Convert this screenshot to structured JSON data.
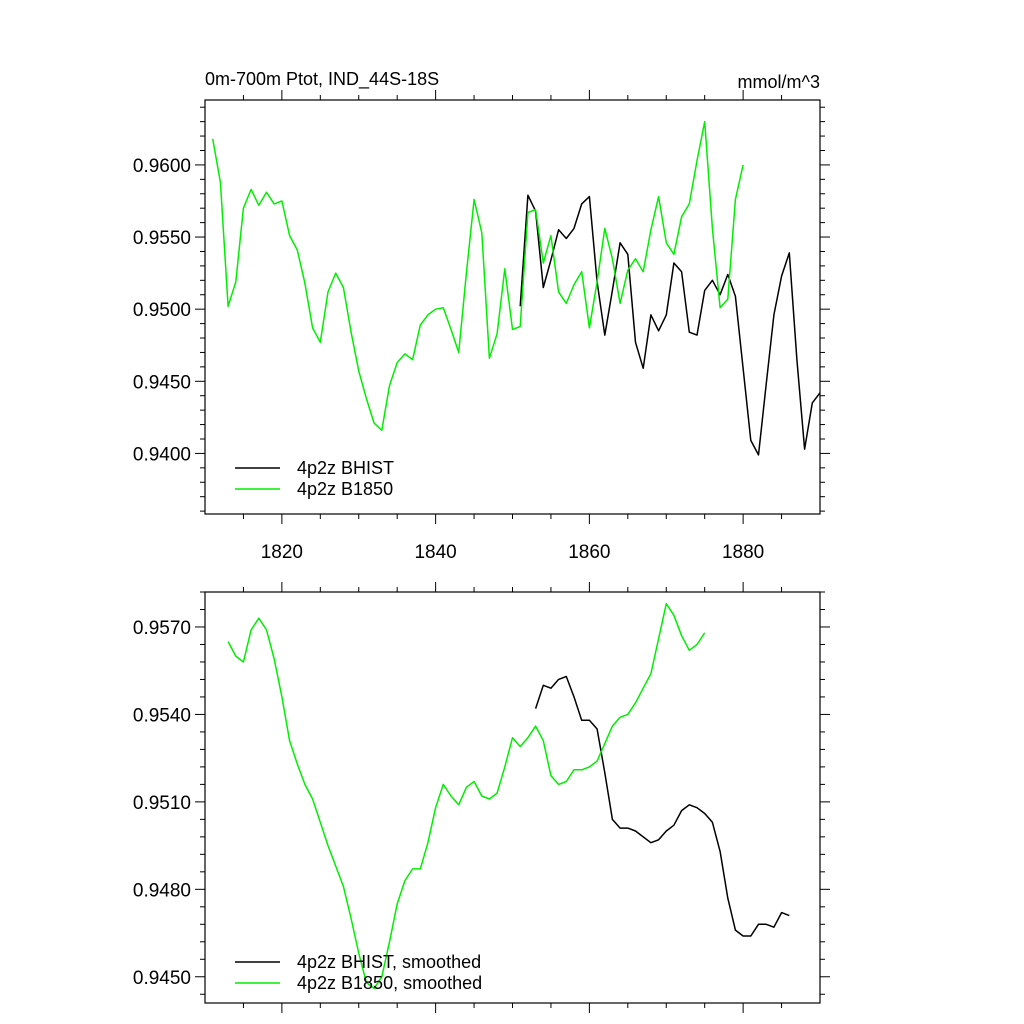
{
  "chart_data": [
    {
      "type": "line",
      "title": "0m-700m Ptot, IND_44S-18S",
      "units": "mmol/m^3",
      "xlim": [
        1810,
        1890
      ],
      "ylim": [
        0.9358,
        0.9645
      ],
      "xticks": [
        1820,
        1840,
        1860,
        1880
      ],
      "xticklabels": [
        "1820",
        "1840",
        "1860",
        "1880"
      ],
      "yticks": [
        0.94,
        0.945,
        0.95,
        0.955,
        0.96
      ],
      "yticklabels": [
        "0.9400",
        "0.9450",
        "0.9500",
        "0.9550",
        "0.9600"
      ],
      "legend": {
        "position": "bottom-left"
      },
      "series": [
        {
          "name": "4p2z BHIST",
          "color": "#000000",
          "x_start": 1851,
          "values": [
            0.9502,
            0.9579,
            0.9568,
            0.9515,
            0.9534,
            0.9555,
            0.9549,
            0.9556,
            0.9573,
            0.9578,
            0.9519,
            0.9482,
            0.9513,
            0.9546,
            0.9538,
            0.9477,
            0.9459,
            0.9496,
            0.9485,
            0.9496,
            0.9532,
            0.9526,
            0.9484,
            0.9482,
            0.9513,
            0.952,
            0.951,
            0.9524,
            0.9509,
            0.9459,
            0.9409,
            0.9399,
            0.9448,
            0.9496,
            0.9523,
            0.9539,
            0.9465,
            0.9403,
            0.9435,
            0.9442
          ]
        },
        {
          "name": "4p2z B1850",
          "color": "#00ee00",
          "x_start": 1811,
          "values": [
            0.9618,
            0.9588,
            0.9502,
            0.9519,
            0.957,
            0.9583,
            0.9572,
            0.9581,
            0.9573,
            0.9575,
            0.9551,
            0.9541,
            0.9518,
            0.9487,
            0.9477,
            0.9512,
            0.9525,
            0.9515,
            0.9484,
            0.9457,
            0.9438,
            0.9421,
            0.9416,
            0.9447,
            0.9463,
            0.9469,
            0.9465,
            0.9489,
            0.9496,
            0.95,
            0.9501,
            0.9486,
            0.947,
            0.9525,
            0.9576,
            0.9553,
            0.9466,
            0.9483,
            0.9528,
            0.9486,
            0.9488,
            0.9567,
            0.9569,
            0.9532,
            0.9551,
            0.9512,
            0.9504,
            0.9517,
            0.9526,
            0.9487,
            0.9519,
            0.9556,
            0.9535,
            0.9504,
            0.9527,
            0.9535,
            0.9526,
            0.9555,
            0.9578,
            0.9546,
            0.9538,
            0.9564,
            0.9573,
            0.9603,
            0.963,
            0.9556,
            0.9501,
            0.9507,
            0.9576,
            0.96
          ]
        }
      ]
    },
    {
      "type": "line",
      "xlim": [
        1810,
        1890
      ],
      "ylim": [
        0.9441,
        0.9582
      ],
      "xticks": [
        1820,
        1840,
        1860,
        1880
      ],
      "yticks": [
        0.945,
        0.948,
        0.951,
        0.954,
        0.957
      ],
      "yticklabels": [
        "0.9450",
        "0.9480",
        "0.9510",
        "0.9540",
        "0.9570"
      ],
      "legend": {
        "position": "bottom-left"
      },
      "series": [
        {
          "name": "4p2z BHIST, smoothed",
          "color": "#000000",
          "x_start": 1853,
          "values": [
            0.9542,
            0.955,
            0.9549,
            0.9552,
            0.9553,
            0.9546,
            0.9538,
            0.9538,
            0.9535,
            0.952,
            0.9504,
            0.9501,
            0.9501,
            0.95,
            0.9498,
            0.9496,
            0.9497,
            0.95,
            0.9502,
            0.9507,
            0.9509,
            0.9508,
            0.9506,
            0.9503,
            0.9493,
            0.9477,
            0.9466,
            0.9464,
            0.9464,
            0.9468,
            0.9468,
            0.9467,
            0.9472,
            0.9471
          ]
        },
        {
          "name": "4p2z B1850, smoothed",
          "color": "#00ee00",
          "x_start": 1813,
          "values": [
            0.9565,
            0.956,
            0.9558,
            0.9569,
            0.9573,
            0.9569,
            0.9559,
            0.9546,
            0.9531,
            0.9523,
            0.9516,
            0.9511,
            0.9503,
            0.9495,
            0.9488,
            0.9481,
            0.947,
            0.9458,
            0.9448,
            0.9446,
            0.945,
            0.9462,
            0.9475,
            0.9483,
            0.9487,
            0.9487,
            0.9496,
            0.9508,
            0.9516,
            0.9512,
            0.9509,
            0.9515,
            0.9517,
            0.9512,
            0.9511,
            0.9513,
            0.9522,
            0.9532,
            0.9529,
            0.9532,
            0.9536,
            0.9531,
            0.9519,
            0.9516,
            0.9517,
            0.9521,
            0.9521,
            0.9522,
            0.9524,
            0.953,
            0.9536,
            0.9539,
            0.954,
            0.9544,
            0.9549,
            0.9554,
            0.9566,
            0.9578,
            0.9574,
            0.9567,
            0.9562,
            0.9564,
            0.9568
          ]
        }
      ]
    }
  ]
}
